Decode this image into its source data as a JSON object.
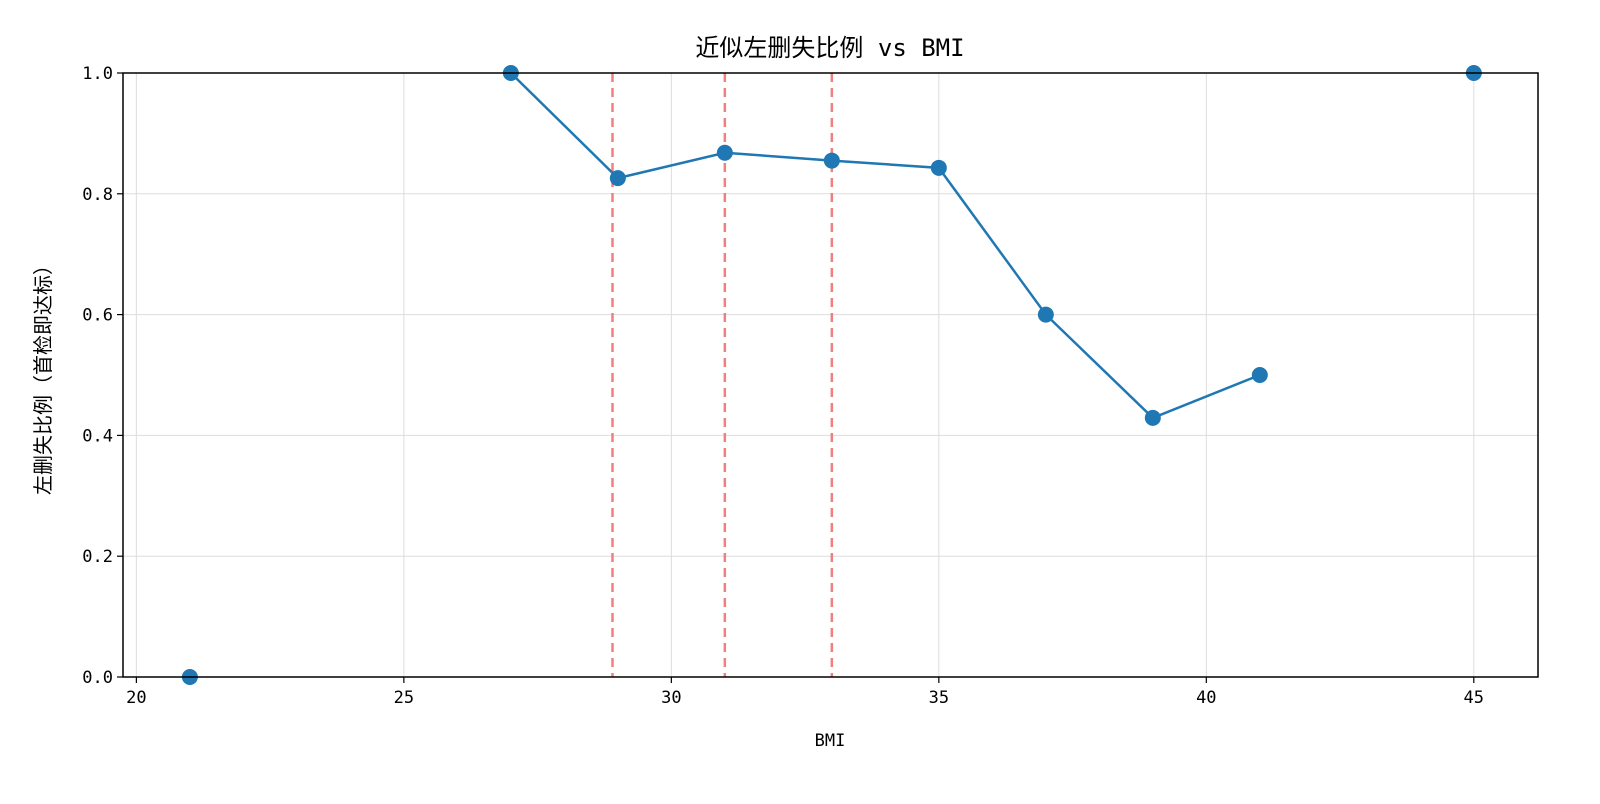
{
  "chart_data": {
    "type": "line",
    "title": "近似左删失比例 vs BMI",
    "xlabel": "BMI",
    "ylabel": "左删失比例（首检即达标）",
    "xlim": [
      19.75,
      46.2
    ],
    "ylim": [
      0,
      1.0
    ],
    "xticks": [
      20,
      25,
      30,
      35,
      40,
      45
    ],
    "yticks": [
      0.0,
      0.2,
      0.4,
      0.6,
      0.8,
      1.0
    ],
    "ytick_labels": [
      "0.0",
      "0.2",
      "0.4",
      "0.6",
      "0.8",
      "1.0"
    ],
    "grid": true,
    "series": [
      {
        "x": [
          21,
          23,
          25,
          27,
          29,
          31,
          33,
          35,
          37,
          39,
          41,
          43,
          45
        ],
        "y": [
          0.0,
          null,
          null,
          1.0,
          0.826,
          0.868,
          0.855,
          0.843,
          0.6,
          0.429,
          0.5,
          null,
          1.0
        ],
        "color": "#1f77b4",
        "marker": "circle"
      }
    ],
    "vlines": [
      {
        "x": 28.9,
        "color": "#f08080",
        "style": "dashed"
      },
      {
        "x": 31.0,
        "color": "#f08080",
        "style": "dashed"
      },
      {
        "x": 33.0,
        "color": "#f08080",
        "style": "dashed"
      }
    ]
  }
}
